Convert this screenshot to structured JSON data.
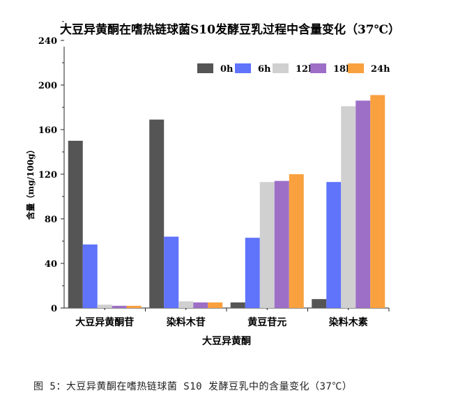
{
  "chart_data": {
    "type": "bar",
    "title": "大豆异黄酮在嗜热链球菌S10发酵豆乳过程中含量变化（37℃）",
    "xlabel": "大豆异黄酮",
    "ylabel": "含量（mg/100g）",
    "categories": [
      "大豆异黄酮苷",
      "染料木苷",
      "黄豆苷元",
      "染料木素"
    ],
    "ylim": [
      0,
      260
    ],
    "yticks": [
      0,
      40,
      80,
      120,
      160,
      200,
      240
    ],
    "legend_position": "top-right",
    "grid": false,
    "series": [
      {
        "name": "0h",
        "color": "#555555",
        "values": [
          150,
          169,
          5,
          8
        ]
      },
      {
        "name": "6h",
        "color": "#5f73fb",
        "values": [
          57,
          64,
          63,
          113
        ]
      },
      {
        "name": "12h",
        "color": "#d0d0d0",
        "values": [
          3,
          6,
          113,
          181
        ]
      },
      {
        "name": "18h",
        "color": "#9d6fc7",
        "values": [
          2,
          5,
          114,
          186
        ]
      },
      {
        "name": "24h",
        "color": "#f9a13e",
        "values": [
          2,
          5,
          120,
          191
        ]
      }
    ]
  },
  "caption": "图 5：大豆异黄酮在嗜热链球菌 S10 发酵豆乳中的含量变化（37℃）"
}
